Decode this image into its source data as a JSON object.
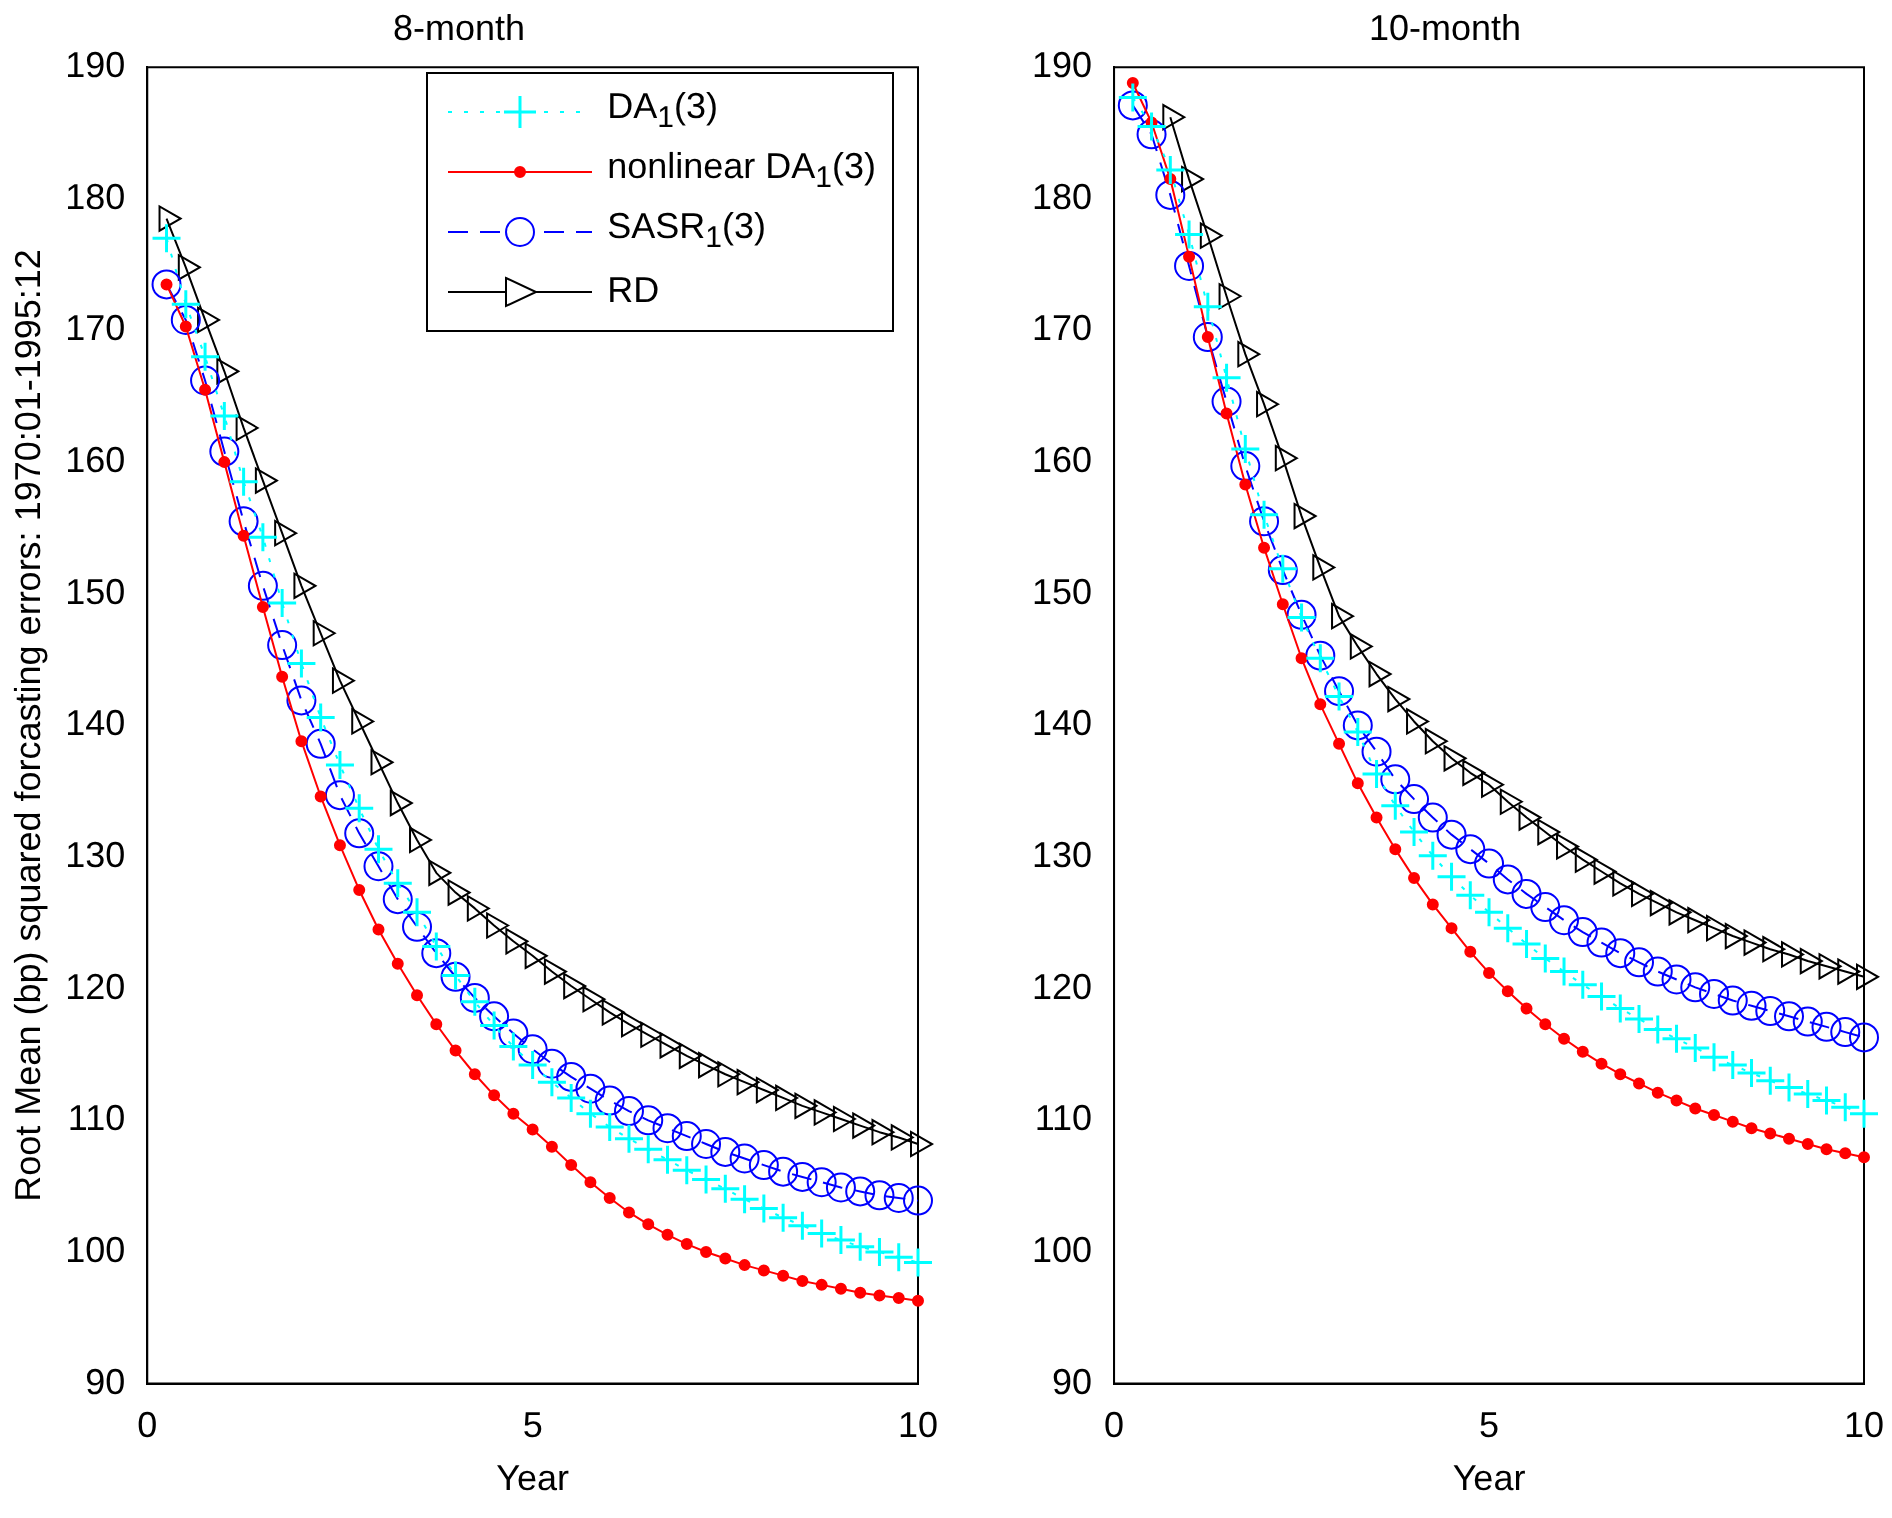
{
  "chart_data": [
    {
      "type": "line",
      "title": "8-month",
      "xlabel": "Year",
      "ylabel": "Root Mean (bp) squared forcasting errors: 1970:01-1995:12",
      "x": [
        0.25,
        0.5,
        0.75,
        1,
        1.25,
        1.5,
        1.75,
        2,
        2.25,
        2.5,
        2.75,
        3,
        3.25,
        3.5,
        3.75,
        4,
        4.25,
        4.5,
        4.75,
        5,
        5.25,
        5.5,
        5.75,
        6,
        6.25,
        6.5,
        6.75,
        7,
        7.25,
        7.5,
        7.75,
        8,
        8.25,
        8.5,
        8.75,
        9,
        9.25,
        9.5,
        9.75,
        10
      ],
      "xlim": [
        0,
        10
      ],
      "xticks": [
        0,
        5,
        10
      ],
      "ylim": [
        90,
        190
      ],
      "yticks": [
        90,
        100,
        110,
        120,
        130,
        140,
        150,
        160,
        170,
        180,
        190
      ],
      "grid": false,
      "legend": "top right",
      "series": [
        {
          "name": "DA$_{1}$(3)",
          "color": "#00ffff",
          "marker": "cross",
          "line_style": "dotted",
          "values": [
            177.0,
            172.0,
            168.0,
            163.5,
            158.5,
            154.3,
            149.3,
            144.7,
            140.6,
            137.0,
            133.7,
            130.6,
            128.0,
            125.8,
            123.2,
            121.0,
            119.0,
            117.2,
            115.6,
            114.2,
            112.9,
            111.7,
            110.5,
            109.5,
            108.6,
            107.8,
            107.0,
            106.2,
            105.5,
            104.8,
            104.0,
            103.3,
            102.6,
            102.0,
            101.4,
            100.9,
            100.4,
            100.0,
            99.6,
            99.2
          ]
        },
        {
          "name": "nonlinear DA$_{1}$(3)",
          "color": "#ff0000",
          "marker": "circle",
          "line_style": "solid",
          "values": [
            173.5,
            170.3,
            165.5,
            160.0,
            154.4,
            149.0,
            143.7,
            138.8,
            134.6,
            130.9,
            127.5,
            124.5,
            121.9,
            119.5,
            117.3,
            115.3,
            113.5,
            111.9,
            110.5,
            109.3,
            108.0,
            106.6,
            105.3,
            104.1,
            103.0,
            102.1,
            101.3,
            100.6,
            100.0,
            99.5,
            99.0,
            98.6,
            98.2,
            97.8,
            97.5,
            97.2,
            96.9,
            96.7,
            96.5,
            96.3
          ]
        },
        {
          "name": "SASR$_{1}$(3)",
          "color": "#0000ff",
          "marker": "circle",
          "line_style": "dashed",
          "values": [
            173.5,
            170.8,
            166.2,
            160.8,
            155.5,
            150.6,
            146.1,
            141.9,
            138.6,
            134.7,
            131.8,
            129.3,
            126.8,
            124.7,
            122.7,
            120.9,
            119.3,
            117.9,
            116.6,
            115.4,
            114.3,
            113.3,
            112.4,
            111.5,
            110.7,
            110.0,
            109.4,
            108.8,
            108.2,
            107.6,
            107.1,
            106.6,
            106.1,
            105.7,
            105.3,
            104.9,
            104.6,
            104.3,
            104.1,
            103.9
          ]
        },
        {
          "name": "RD",
          "color": "#000000",
          "marker": "triangle",
          "line_style": "solid",
          "values": [
            178.5,
            174.8,
            170.8,
            166.9,
            162.6,
            158.6,
            154.6,
            150.6,
            147.0,
            143.4,
            140.3,
            137.2,
            134.1,
            131.3,
            128.8,
            127.3,
            126.1,
            124.8,
            123.6,
            122.5,
            121.3,
            120.2,
            119.2,
            118.2,
            117.3,
            116.5,
            115.7,
            114.9,
            114.2,
            113.5,
            112.9,
            112.3,
            111.7,
            111.1,
            110.6,
            110.1,
            109.6,
            109.1,
            108.7,
            108.2
          ]
        }
      ]
    },
    {
      "type": "line",
      "title": "10-month",
      "xlabel": "Year",
      "x": [
        0.25,
        0.5,
        0.75,
        1,
        1.25,
        1.5,
        1.75,
        2,
        2.25,
        2.5,
        2.75,
        3,
        3.25,
        3.5,
        3.75,
        4,
        4.25,
        4.5,
        4.75,
        5,
        5.25,
        5.5,
        5.75,
        6,
        6.25,
        6.5,
        6.75,
        7,
        7.25,
        7.5,
        7.75,
        8,
        8.25,
        8.5,
        8.75,
        9,
        9.25,
        9.5,
        9.75,
        10
      ],
      "xlim": [
        0,
        10
      ],
      "xticks": [
        0,
        5,
        10
      ],
      "ylim": [
        90,
        190
      ],
      "yticks": [
        90,
        100,
        110,
        120,
        130,
        140,
        150,
        160,
        170,
        180,
        190
      ],
      "grid": false,
      "series": [
        {
          "color": "#00ffff",
          "marker": "cross",
          "line_style": "dotted",
          "values": [
            187.7,
            185.5,
            182.2,
            177.3,
            171.8,
            166.4,
            161.0,
            156.0,
            151.9,
            148.2,
            145.1,
            142.2,
            139.5,
            136.3,
            133.9,
            131.9,
            130.1,
            128.5,
            127.1,
            125.8,
            124.6,
            123.4,
            122.3,
            121.3,
            120.3,
            119.4,
            118.5,
            117.7,
            116.9,
            116.2,
            115.5,
            114.8,
            114.2,
            113.6,
            113.0,
            112.5,
            112.0,
            111.5,
            111.0,
            110.5
          ]
        },
        {
          "color": "#ff0000",
          "marker": "circle",
          "line_style": "solid",
          "values": [
            188.8,
            185.8,
            181.5,
            175.6,
            169.5,
            163.7,
            158.3,
            153.5,
            149.2,
            145.1,
            141.6,
            138.6,
            135.6,
            133.0,
            130.6,
            128.4,
            126.4,
            124.6,
            122.8,
            121.2,
            119.8,
            118.5,
            117.3,
            116.2,
            115.2,
            114.3,
            113.5,
            112.8,
            112.1,
            111.5,
            110.9,
            110.4,
            109.9,
            109.4,
            109.0,
            108.6,
            108.2,
            107.8,
            107.5,
            107.2
          ]
        },
        {
          "color": "#0000ff",
          "marker": "circle",
          "line_style": "dashed",
          "values": [
            187.1,
            184.9,
            180.3,
            174.9,
            169.5,
            164.6,
            159.7,
            155.5,
            151.8,
            148.4,
            145.3,
            142.6,
            140.0,
            138.0,
            135.9,
            134.4,
            133.0,
            131.7,
            130.6,
            129.5,
            128.3,
            127.2,
            126.2,
            125.2,
            124.3,
            123.5,
            122.7,
            122.0,
            121.3,
            120.7,
            120.1,
            119.6,
            119.1,
            118.7,
            118.3,
            117.9,
            117.5,
            117.1,
            116.7,
            116.3
          ]
        },
        {
          "color": "#000000",
          "marker": "triangle",
          "line_style": "solid",
          "values": [
            null,
            null,
            186.2,
            181.5,
            177.2,
            172.6,
            168.2,
            164.4,
            160.3,
            155.9,
            152.0,
            148.3,
            146.0,
            143.9,
            142.0,
            140.3,
            138.8,
            137.5,
            136.4,
            135.5,
            134.2,
            133.0,
            131.9,
            130.8,
            129.8,
            128.9,
            128.0,
            127.2,
            126.5,
            125.8,
            125.2,
            124.6,
            124.0,
            123.5,
            123.0,
            122.6,
            122.1,
            121.7,
            121.3,
            120.9
          ]
        }
      ]
    }
  ]
}
